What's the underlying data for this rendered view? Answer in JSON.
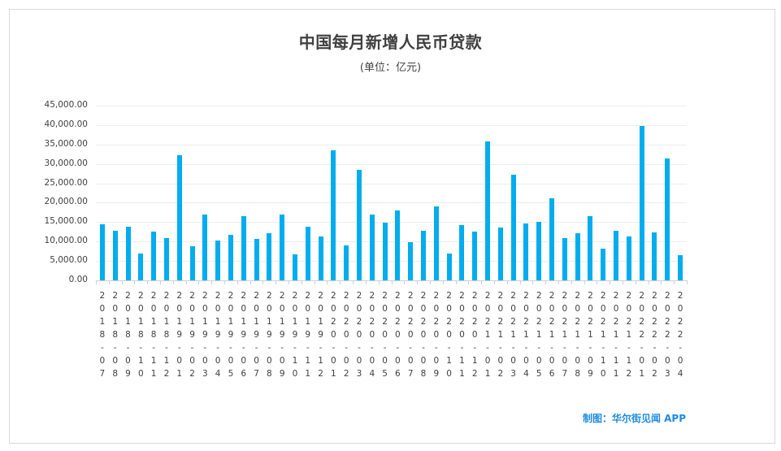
{
  "chart_data": {
    "type": "bar",
    "title": "中国每月新增人民币贷款",
    "subtitle": "(单位：亿元)",
    "xlabel": "",
    "ylabel": "",
    "ylim": [
      0,
      45000
    ],
    "yticks": [
      "0.00",
      "5,000.00",
      "10,000.00",
      "15,000.00",
      "20,000.00",
      "25,000.00",
      "30,000.00",
      "35,000.00",
      "40,000.00",
      "45,000.00"
    ],
    "grid": true,
    "legend": null,
    "bar_color": "#00adee",
    "categories": [
      "2018-07",
      "2018-08",
      "2018-09",
      "2018-10",
      "2018-11",
      "2018-12",
      "2019-01",
      "2019-02",
      "2019-03",
      "2019-04",
      "2019-05",
      "2019-06",
      "2019-07",
      "2019-08",
      "2019-09",
      "2019-10",
      "2019-11",
      "2019-12",
      "2020-01",
      "2020-02",
      "2020-03",
      "2020-04",
      "2020-05",
      "2020-06",
      "2020-07",
      "2020-08",
      "2020-09",
      "2020-10",
      "2020-11",
      "2020-12",
      "2021-01",
      "2021-02",
      "2021-03",
      "2021-04",
      "2021-05",
      "2021-06",
      "2021-07",
      "2021-08",
      "2021-09",
      "2021-10",
      "2021-11",
      "2021-12",
      "2022-01",
      "2022-02",
      "2022-03",
      "2022-04"
    ],
    "values": [
      14500,
      12800,
      13800,
      6970,
      12500,
      10800,
      32300,
      8858,
      16900,
      10200,
      11800,
      16600,
      10600,
      12100,
      16900,
      6613,
      13900,
      11400,
      33400,
      9057,
      28500,
      17000,
      14800,
      18100,
      9927,
      12800,
      19000,
      6898,
      14300,
      12600,
      35800,
      13600,
      27300,
      14700,
      15000,
      21200,
      10800,
      12200,
      16600,
      8262,
      12700,
      11300,
      39800,
      12300,
      31300,
      6454
    ]
  },
  "footer": {
    "credit": "制图：华尔街见闻 APP"
  },
  "colors": {
    "bar": "#00adee",
    "credit": "#1e8be0",
    "text": "#404040"
  }
}
